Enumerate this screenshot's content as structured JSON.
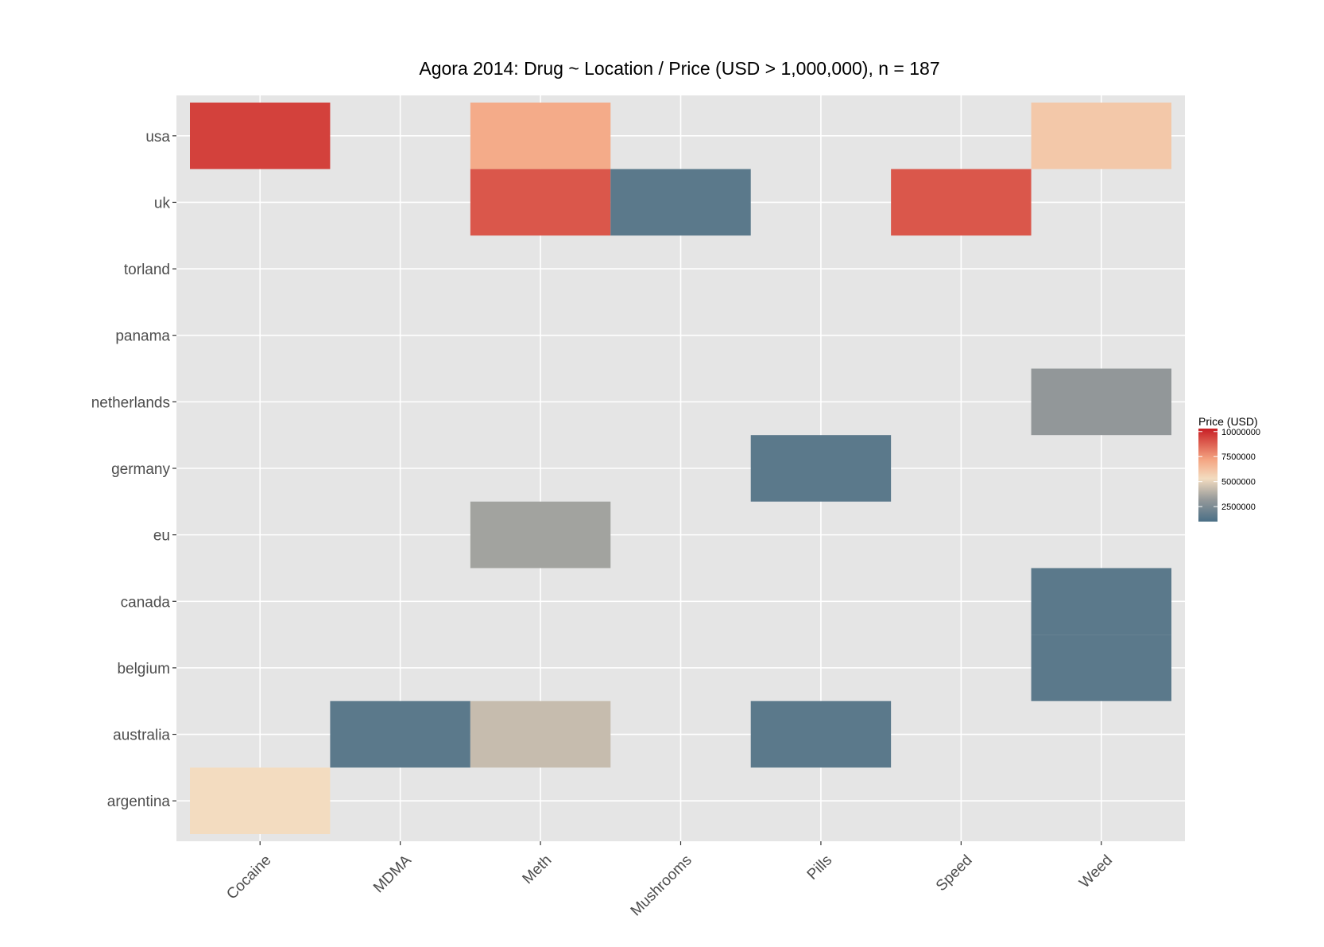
{
  "chart_data": {
    "type": "heatmap",
    "title": "Agora 2014: Drug ~ Location / Price (USD > 1,000,000), n = 187",
    "xlabel": "",
    "ylabel": "",
    "x_categories": [
      "Cocaine",
      "MDMA",
      "Meth",
      "Mushrooms",
      "Pills",
      "Speed",
      "Weed"
    ],
    "y_categories": [
      "argentina",
      "australia",
      "belgium",
      "canada",
      "eu",
      "germany",
      "netherlands",
      "panama",
      "torland",
      "uk",
      "usa"
    ],
    "cells": [
      {
        "x": "Cocaine",
        "y": "usa",
        "value": 9500000
      },
      {
        "x": "Meth",
        "y": "usa",
        "value": 7000000
      },
      {
        "x": "Weed",
        "y": "usa",
        "value": 6000000
      },
      {
        "x": "Meth",
        "y": "uk",
        "value": 9000000
      },
      {
        "x": "Mushrooms",
        "y": "uk",
        "value": 1500000
      },
      {
        "x": "Speed",
        "y": "uk",
        "value": 9000000
      },
      {
        "x": "Weed",
        "y": "netherlands",
        "value": 3100000
      },
      {
        "x": "Pills",
        "y": "germany",
        "value": 1500000
      },
      {
        "x": "Meth",
        "y": "eu",
        "value": 3500000
      },
      {
        "x": "Weed",
        "y": "canada",
        "value": 1500000
      },
      {
        "x": "Weed",
        "y": "belgium",
        "value": 1500000
      },
      {
        "x": "MDMA",
        "y": "australia",
        "value": 1500000
      },
      {
        "x": "Meth",
        "y": "australia",
        "value": 4300000
      },
      {
        "x": "Pills",
        "y": "australia",
        "value": 1500000
      },
      {
        "x": "Cocaine",
        "y": "argentina",
        "value": 5300000
      }
    ],
    "legend": {
      "title": "Price (USD)",
      "position": "right",
      "breaks": [
        10000000,
        7500000,
        5000000,
        2500000
      ],
      "break_labels": [
        "10000000",
        "7500000",
        "5000000",
        "2500000"
      ],
      "range": [
        1000000,
        10300000
      ],
      "colors": {
        "low": "#4a6f86",
        "mid_low": "#95999a",
        "mid": "#f3dcc0",
        "mid_high": "#f4a582",
        "high": "#c81e24"
      }
    },
    "grid": true,
    "panel_background": "#e5e5e5"
  }
}
